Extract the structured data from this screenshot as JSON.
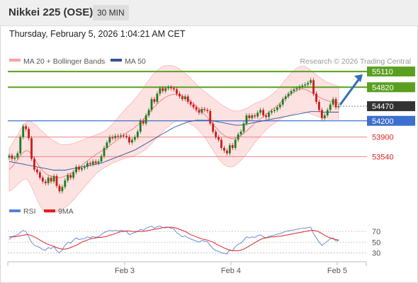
{
  "header": {
    "title": "Nikkei 225 (OSE)",
    "timeframe": "30 MIN"
  },
  "timestamp": "Thursday, February 5, 2026 1:04:21 AM CET",
  "legend": {
    "bb": {
      "label": "MA 20 + Bollinger Bands",
      "color": "#f08a8a"
    },
    "ma50": {
      "label": "MA 50",
      "color": "#2f5597"
    },
    "credit": "Research © 2026 Trading Central"
  },
  "rsi_legend": {
    "rsi": {
      "label": "RSI",
      "color": "#5b7fd8"
    },
    "ma9": {
      "label": "9MA",
      "color": "#e02020"
    }
  },
  "colors": {
    "up": "#1f7a1f",
    "down": "#d01818",
    "resistance": "#5aa020",
    "support_blue": "#3d6fd0",
    "support_red": "#f08080",
    "current": "#333333",
    "arrow": "#2f6fb8"
  },
  "chart_data": {
    "type": "candlestick",
    "x_labels": [
      "Feb 3",
      "Feb 4",
      "Feb 5"
    ],
    "levels": [
      {
        "value": 55110,
        "label": "55110",
        "kind": "resistance"
      },
      {
        "value": 54820,
        "label": "54820",
        "kind": "resistance"
      },
      {
        "value": 54470,
        "label": "54470",
        "kind": "current"
      },
      {
        "value": 54200,
        "label": "54200",
        "kind": "pivot"
      },
      {
        "value": 53900,
        "label": "53900",
        "kind": "support"
      },
      {
        "value": 53540,
        "label": "53540",
        "kind": "support"
      }
    ],
    "close": [
      53560,
      53500,
      53520,
      53600,
      53900,
      54100,
      54050,
      53880,
      53500,
      53300,
      53250,
      53150,
      53080,
      53050,
      53150,
      53080,
      53180,
      53000,
      52900,
      52980,
      53100,
      53200,
      53150,
      53250,
      53350,
      53300,
      53330,
      53350,
      53420,
      53400,
      53450,
      53420,
      53450,
      53550,
      53700,
      53800,
      53900,
      53880,
      53920,
      53910,
      53930,
      53920,
      53900,
      53800,
      53850,
      53900,
      54000,
      54200,
      54150,
      54300,
      54400,
      54600,
      54550,
      54700,
      54800,
      54750,
      54800,
      54820,
      54800,
      54780,
      54700,
      54650,
      54600,
      54650,
      54550,
      54500,
      54450,
      54400,
      54350,
      54420,
      54400,
      54380,
      54150,
      54000,
      53900,
      53850,
      53700,
      53650,
      53600,
      53750,
      53700,
      53850,
      53950,
      54000,
      54150,
      54300,
      54250,
      54300,
      54280,
      54350,
      54400,
      54300,
      54270,
      54350,
      54380,
      54400,
      54450,
      54500,
      54600,
      54650,
      54700,
      54750,
      54780,
      54800,
      54830,
      54850,
      54870,
      54900,
      54950,
      54700,
      54550,
      54400,
      54250,
      54300,
      54400,
      54500,
      54600,
      54450,
      54470
    ],
    "ma20": [
      53300,
      53350,
      53420,
      53480,
      53550,
      53620,
      53650,
      53640,
      53580,
      53500,
      53420,
      53340,
      53280,
      53230,
      53200,
      53180,
      53170,
      53160,
      53150,
      53160,
      53180,
      53200,
      53230,
      53260,
      53300,
      53340,
      53380,
      53420,
      53460,
      53500,
      53540,
      53580,
      53610,
      53640,
      53670,
      53700,
      53740,
      53780,
      53820,
      53860,
      53900,
      53940,
      53980,
      54010,
      54040,
      54080,
      54120,
      54170,
      54220,
      54280,
      54340,
      54400,
      54460,
      54510,
      54560,
      54600,
      54640,
      54660,
      54680,
      54690,
      54690,
      54680,
      54660,
      54630,
      54600,
      54560,
      54520,
      54470,
      54420,
      54370,
      54320,
      54260,
      54200,
      54140,
      54080,
      54020,
      53970,
      53930,
      53900,
      53880,
      53870,
      53880,
      53900,
      53930,
      53970,
      54010,
      54060,
      54110,
      54160,
      54200,
      54240,
      54280,
      54320,
      54360,
      54400,
      54440,
      54480,
      54530,
      54580,
      54620,
      54660,
      54700,
      54730,
      54760,
      54780,
      54790,
      54780,
      54760,
      54730,
      54700,
      54670,
      54640,
      54610,
      54590,
      54570,
      54560,
      54550,
      54540,
      54530
    ],
    "ma50": [
      53450,
      53440,
      53430,
      53420,
      53410,
      53400,
      53390,
      53380,
      53370,
      53360,
      53350,
      53340,
      53330,
      53320,
      53310,
      53300,
      53290,
      53290,
      53290,
      53290,
      53290,
      53300,
      53310,
      53320,
      53330,
      53340,
      53350,
      53360,
      53370,
      53380,
      53390,
      53400,
      53410,
      53420,
      53440,
      53460,
      53480,
      53500,
      53520,
      53540,
      53560,
      53580,
      53600,
      53620,
      53640,
      53660,
      53690,
      53720,
      53750,
      53780,
      53810,
      53840,
      53870,
      53900,
      53930,
      53960,
      53990,
      54020,
      54050,
      54080,
      54100,
      54120,
      54140,
      54160,
      54180,
      54190,
      54200,
      54210,
      54210,
      54210,
      54210,
      54210,
      54210,
      54200,
      54190,
      54180,
      54170,
      54160,
      54150,
      54140,
      54130,
      54120,
      54120,
      54120,
      54130,
      54140,
      54150,
      54160,
      54170,
      54180,
      54190,
      54200,
      54210,
      54220,
      54230,
      54240,
      54250,
      54260,
      54270,
      54280,
      54290,
      54300,
      54310,
      54320,
      54330,
      54340,
      54350,
      54360,
      54370,
      54370,
      54370,
      54370,
      54360,
      54360,
      54360,
      54360,
      54360,
      54360,
      54360
    ],
    "bb_width": [
      400,
      420,
      440,
      460,
      480,
      500,
      520,
      560,
      600,
      640,
      680,
      700,
      720,
      720,
      700,
      680,
      660,
      640,
      620,
      600,
      580,
      560,
      540,
      520,
      500,
      480,
      460,
      440,
      420,
      400,
      380,
      360,
      350,
      340,
      340,
      340,
      350,
      360,
      380,
      400,
      420,
      440,
      460,
      480,
      500,
      520,
      540,
      560,
      580,
      600,
      610,
      620,
      620,
      620,
      610,
      600,
      580,
      560,
      540,
      520,
      500,
      480,
      460,
      440,
      430,
      420,
      410,
      400,
      400,
      410,
      420,
      440,
      460,
      480,
      500,
      520,
      530,
      540,
      540,
      530,
      520,
      500,
      480,
      460,
      440,
      420,
      400,
      380,
      360,
      340,
      320,
      300,
      290,
      280,
      280,
      280,
      290,
      300,
      320,
      340,
      360,
      380,
      400,
      410,
      420,
      420,
      420,
      410,
      400,
      390,
      380,
      370,
      360,
      350,
      340,
      330,
      320,
      310,
      300
    ],
    "rsi": [
      55,
      60,
      62,
      64,
      68,
      72,
      70,
      60,
      50,
      44,
      42,
      40,
      36,
      35,
      40,
      38,
      42,
      34,
      30,
      36,
      44,
      50,
      48,
      54,
      58,
      55,
      56,
      57,
      60,
      58,
      61,
      59,
      60,
      64,
      68,
      70,
      72,
      71,
      72,
      71,
      72,
      71,
      70,
      64,
      66,
      68,
      70,
      74,
      72,
      76,
      78,
      80,
      76,
      79,
      80,
      77,
      78,
      78,
      76,
      74,
      68,
      64,
      60,
      62,
      58,
      56,
      54,
      52,
      50,
      53,
      52,
      51,
      44,
      38,
      34,
      33,
      30,
      29,
      28,
      36,
      34,
      42,
      46,
      48,
      54,
      60,
      58,
      60,
      59,
      62,
      64,
      60,
      58,
      61,
      62,
      63,
      65,
      66,
      68,
      70,
      71,
      72,
      73,
      74,
      75,
      76,
      76,
      77,
      78,
      66,
      58,
      50,
      44,
      48,
      52,
      56,
      58,
      52,
      53
    ],
    "rsi_ma9": [
      60,
      60,
      60,
      61,
      62,
      63,
      64,
      64,
      62,
      60,
      57,
      54,
      51,
      48,
      46,
      44,
      42,
      40,
      38,
      37,
      37,
      38,
      40,
      42,
      44,
      47,
      50,
      52,
      54,
      56,
      57,
      58,
      59,
      59,
      60,
      61,
      63,
      64,
      66,
      68,
      70,
      70,
      71,
      71,
      70,
      70,
      70,
      70,
      70,
      71,
      72,
      73,
      74,
      75,
      76,
      77,
      77,
      78,
      78,
      77,
      76,
      74,
      72,
      70,
      67,
      64,
      62,
      60,
      58,
      56,
      55,
      54,
      52,
      50,
      47,
      44,
      42,
      39,
      37,
      35,
      34,
      34,
      34,
      35,
      37,
      40,
      43,
      46,
      49,
      52,
      55,
      57,
      58,
      59,
      60,
      60,
      61,
      61,
      62,
      63,
      64,
      65,
      66,
      67,
      68,
      69,
      70,
      71,
      72,
      72,
      71,
      69,
      66,
      63,
      60,
      58,
      56,
      55,
      54
    ],
    "rsi_levels": [
      70,
      50,
      30
    ],
    "ylim": [
      52800,
      55150
    ]
  }
}
